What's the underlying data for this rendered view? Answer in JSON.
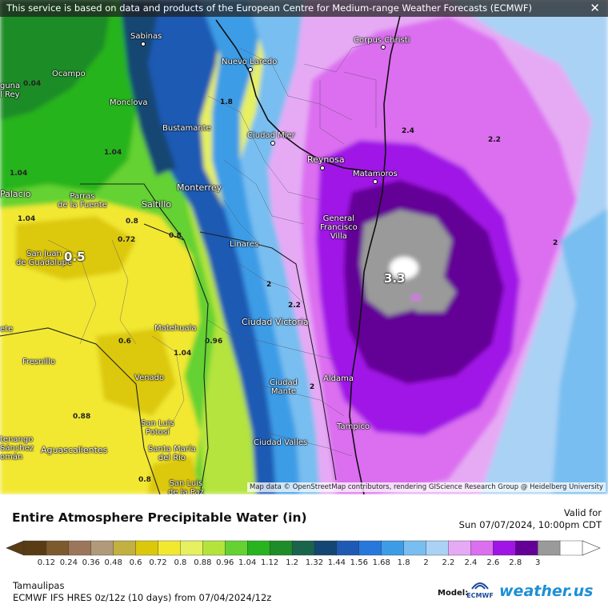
{
  "notice": "This service is based on data and products of the European Centre for Medium-range Weather Forecasts (ECMWF)",
  "close_symbol": "✕",
  "attribution": "Map data © OpenStreetMap contributors, rendering GIScience Research Group @ Heidelberg University",
  "cities": {
    "sabinas": "Sabinas",
    "ocampo": "Ocampo",
    "monclova": "Monclova",
    "nuevo_laredo": "Nuevo Laredo",
    "corpus_christi": "Corpus Christi",
    "bustamante": "Bustamante",
    "ciudad_mier": "Ciudad Mier",
    "reynosa": "Reynosa",
    "matamoros": "Matamoros",
    "palacio": "Palacio",
    "parras": "Parras\nde la Fuente",
    "saltillo": "Saltillo",
    "monterrey": "Monterrey",
    "general_francisco_villa": "General\nFrancisco\nVilla",
    "san_juan": "San Juan\nde Guadalupe",
    "linares": "Linares",
    "matehuala": "Matehuala",
    "ciudad_victoria": "Ciudad Victoria",
    "fresnillo": "Fresnillo",
    "venado": "Venado",
    "ciudad_mante": "Ciudad\nMante",
    "aldama": "Aldama",
    "san_luis_potosi": "San Luis\nPotosí",
    "tampico": "Tampico",
    "aguascalientes": "Aguascalientes",
    "ciudad_valles": "Ciudad Valles",
    "santa_maria": "Santa María\ndel Río",
    "san_luis_paz": "San Luis\nde la Paz",
    "tenango": "tenango\nSánchez\nomán",
    "laguna": "guna\nl Rey",
    "ete": "ete"
  },
  "contour_labels": [
    "1.8",
    "2.4",
    "2.2",
    "2",
    "2",
    "2.2",
    "2",
    "1.04",
    "1.04",
    "1.04",
    "0.8",
    "0.72",
    "0.8",
    "0.6",
    "1.04",
    "0.96",
    "0.88",
    "0.8",
    "0.04"
  ],
  "peak_labels": [
    "0.5",
    "3.3"
  ],
  "legend": {
    "title": "Entire Atmosphere Precipitable Water (in)",
    "valid_label": "Valid for",
    "valid_time": "Sun 07/07/2024, 10:00pm CDT",
    "ticks": [
      "0.12",
      "0.24",
      "0.36",
      "0.48",
      "0.6",
      "0.72",
      "0.8",
      "0.88",
      "0.96",
      "1.04",
      "1.12",
      "1.2",
      "1.32",
      "1.44",
      "1.56",
      "1.68",
      "1.8",
      "2",
      "2.2",
      "2.4",
      "2.6",
      "2.8",
      "3"
    ],
    "colors": [
      "#5a3c14",
      "#7d5a2e",
      "#9c765a",
      "#b09a7a",
      "#c2b040",
      "#dcc80a",
      "#f2e830",
      "#e6f060",
      "#b4e43c",
      "#64d232",
      "#28b41e",
      "#1e8c28",
      "#19644b",
      "#144673",
      "#1e5ab4",
      "#2878dc",
      "#3c9ce6",
      "#78bef0",
      "#aad2f5",
      "#e6aaf5",
      "#dc6ef0",
      "#a014e6",
      "#640096",
      "#9a9a9a",
      "#ffffff"
    ],
    "region": "Tamaulipas",
    "model_run": "ECMWF IFS HRES 0z/12z (10 days) from 07/04/2024/12z",
    "model_label": "Model:",
    "model_logo_text": "ECMWF",
    "brand": "weather.us"
  }
}
